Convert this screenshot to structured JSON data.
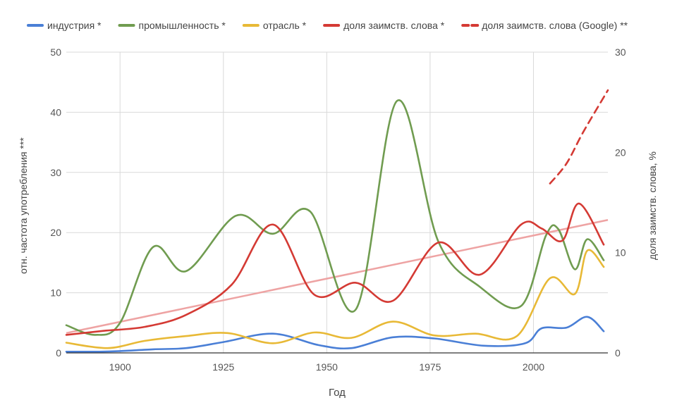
{
  "chart_data": {
    "type": "line",
    "xlabel": "Год",
    "ylabel_left": "отн. частота употребления ***",
    "ylabel_right": "доля заимств. слова, %",
    "x_ticks": [
      1900,
      1925,
      1950,
      1975,
      2000
    ],
    "xlim": [
      1887,
      2018
    ],
    "ylim_left": [
      0,
      50
    ],
    "y_ticks_left": [
      0,
      10,
      20,
      30,
      40,
      50
    ],
    "ylim_right": [
      0,
      30
    ],
    "y_ticks_right": [
      0,
      10,
      20,
      30
    ],
    "grid": true,
    "legend_position": "top",
    "series": [
      {
        "name": "индустрия *",
        "axis": "left",
        "color": "#4a7fd6",
        "dash": "solid",
        "x": [
          1887,
          1895,
          1900,
          1908,
          1916,
          1925,
          1937,
          1948,
          1956,
          1966,
          1976,
          1988,
          1998,
          2002,
          2008,
          2013,
          2017
        ],
        "y": [
          0.2,
          0.2,
          0.3,
          0.6,
          0.8,
          1.8,
          3.2,
          1.3,
          0.8,
          2.6,
          2.4,
          1.2,
          1.6,
          4.1,
          4.2,
          6.0,
          3.6
        ]
      },
      {
        "name": "промышленность *",
        "axis": "left",
        "color": "#709c50",
        "dash": "solid",
        "x": [
          1887,
          1894,
          1900,
          1908,
          1916,
          1928,
          1937,
          1946,
          1957,
          1967,
          1977,
          1987,
          1997,
          2003,
          2006,
          2010,
          2013,
          2017
        ],
        "y": [
          4.6,
          3.0,
          5.0,
          17.6,
          13.6,
          22.8,
          19.8,
          23.5,
          7.2,
          41.9,
          18.5,
          11.0,
          7.8,
          19.5,
          20.6,
          13.9,
          18.9,
          15.4
        ]
      },
      {
        "name": "отрасль *",
        "axis": "left",
        "color": "#e8b936",
        "dash": "solid",
        "x": [
          1887,
          1897,
          1906,
          1916,
          1926,
          1937,
          1947,
          1956,
          1966,
          1976,
          1986,
          1996,
          2004,
          2010,
          2013,
          2017
        ],
        "y": [
          1.7,
          0.8,
          2.0,
          2.8,
          3.3,
          1.6,
          3.4,
          2.5,
          5.2,
          2.9,
          3.2,
          2.8,
          12.4,
          9.8,
          17.0,
          14.3
        ]
      },
      {
        "name": "доля заимств. слова *",
        "axis": "right",
        "color": "#d43a34",
        "dash": "solid",
        "x": [
          1887,
          1896,
          1906,
          1916,
          1927,
          1937,
          1947,
          1957,
          1966,
          1977,
          1987,
          1997,
          2002,
          2007,
          2011,
          2017
        ],
        "y": [
          1.8,
          2.2,
          2.6,
          3.8,
          6.8,
          12.8,
          5.8,
          7.0,
          5.2,
          11.0,
          7.8,
          12.8,
          12.4,
          11.2,
          14.9,
          10.8
        ]
      },
      {
        "name": "доля заимств. слова (Google) **",
        "axis": "right",
        "color": "#d43a34",
        "dash": "dashed",
        "x": [
          2004,
          2008,
          2012,
          2018
        ],
        "y": [
          16.9,
          18.9,
          22.0,
          26.2
        ]
      }
    ],
    "trendline": {
      "axis": "left",
      "color": "#eea3a3",
      "x": [
        1887,
        2018
      ],
      "y": [
        3.3,
        22.1
      ]
    }
  }
}
